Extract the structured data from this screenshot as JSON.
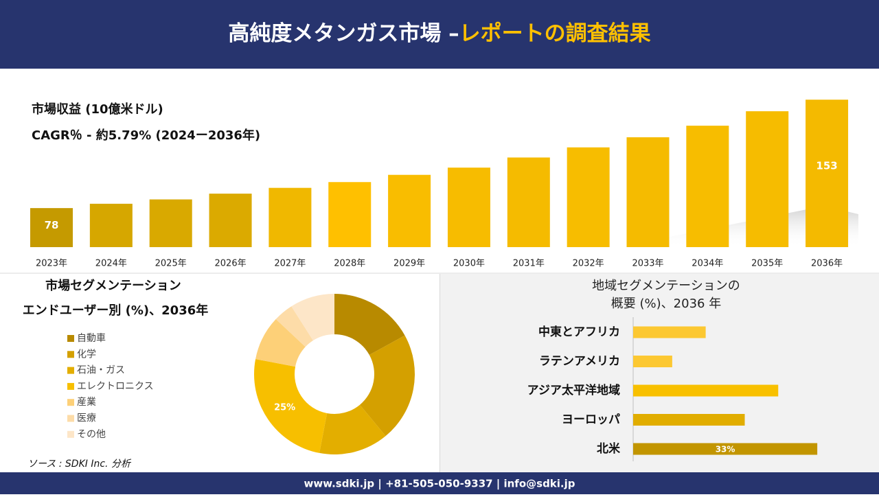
{
  "header": {
    "title_main": "高純度メタンガス市場 –",
    "title_highlight": "レポートの調査結果"
  },
  "chart_data": [
    {
      "type": "bar",
      "title": "市場収益 (10億米ドル)",
      "subtitle": "CAGR％ - 約5.79% (2024ー2036年)",
      "categories": [
        "2023年",
        "2024年",
        "2025年",
        "2026年",
        "2027年",
        "2028年",
        "2029年",
        "2030年",
        "2031年",
        "2032年",
        "2033年",
        "2034年",
        "2035年",
        "2036年"
      ],
      "values": [
        78,
        81,
        84,
        88,
        92,
        96,
        101,
        106,
        113,
        120,
        127,
        135,
        145,
        153
      ],
      "value_labels": [
        "78",
        null,
        null,
        null,
        null,
        null,
        null,
        null,
        null,
        null,
        null,
        null,
        null,
        "153"
      ],
      "colors": [
        "#c59a00",
        "#d6a700",
        "#d9a900",
        "#dbaa00",
        "#f0b800",
        "#ffc000",
        "#f9bd00",
        "#f7bc00",
        "#f5bb00",
        "#f7bd00",
        "#f5bb00",
        "#f7bd00",
        "#f6bc00",
        "#f4ba00"
      ],
      "ylim": [
        51,
        155
      ]
    },
    {
      "type": "donut",
      "title": "市場セグメンテーション",
      "subtitle": "エンドユーザー別 (%)、2036年",
      "categories": [
        "自動車",
        "化学",
        "石油・ガス",
        "エレクトロニクス",
        "産業",
        "医療",
        "その他"
      ],
      "values": [
        17,
        22,
        14,
        25,
        9,
        4,
        9
      ],
      "value_labels": [
        null,
        null,
        null,
        "25%",
        null,
        null,
        null
      ],
      "colors": [
        "#b88a00",
        "#d4a000",
        "#e3ae00",
        "#f7bf00",
        "#fdd078",
        "#fddca8",
        "#fde6c8"
      ]
    },
    {
      "type": "hbar",
      "title": "地域セグメンテーションの",
      "subtitle": "概要 (%)、2036 年",
      "categories": [
        "中東とアフリカ",
        "ラテンアメリカ",
        "アジア太平洋地域",
        "ヨーロッパ",
        "北米"
      ],
      "values": [
        13,
        7,
        26,
        20,
        33
      ],
      "value_labels": [
        null,
        null,
        null,
        null,
        "33%"
      ],
      "colors": [
        "#fcc832",
        "#fcc832",
        "#f8c000",
        "#e1ad00",
        "#c29500"
      ],
      "xlim": [
        0,
        40
      ]
    }
  ],
  "source": "ソース : SDKI Inc. 分析",
  "footer": "www.sdki.jp | +81-505-050-9337 | info@sdki.jp"
}
